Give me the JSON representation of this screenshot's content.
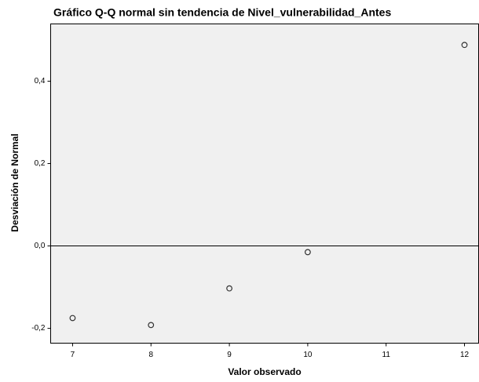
{
  "chart_data": {
    "type": "scatter",
    "title": "Gráfico Q-Q normal sin tendencia de Nivel_vulnerabilidad_Antes",
    "x_label": "Valor observado",
    "y_label": "Desviación de Normal",
    "x": [
      7,
      8,
      9,
      10,
      12
    ],
    "values": [
      -0.175,
      -0.192,
      -0.103,
      -0.015,
      0.488
    ],
    "color": "#333333",
    "background": "#f0f0f0",
    "reference_line": 0,
    "xlim": [
      6.72,
      12.18
    ],
    "ylim": [
      -0.236,
      0.539
    ],
    "xticks": [
      7,
      8,
      9,
      10,
      11,
      12
    ],
    "yticks": [
      {
        "value": -0.2,
        "label": "-0,2"
      },
      {
        "value": 0,
        "label": "0,0"
      },
      {
        "value": 0.2,
        "label": "0,2"
      },
      {
        "value": 0.4,
        "label": "0,4"
      }
    ]
  }
}
